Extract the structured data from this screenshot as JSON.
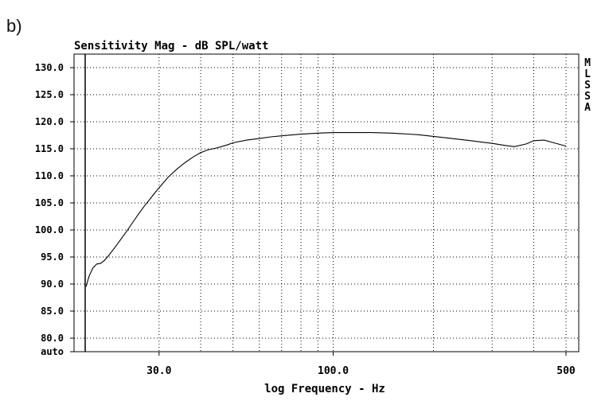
{
  "panel_label": "b)",
  "chart_data": {
    "type": "line",
    "title": "Sensitivity Mag - dB SPL/watt",
    "xlabel": "log Frequency - Hz",
    "ylabel": "",
    "x_scale": "log",
    "xlim": [
      18,
      500
    ],
    "ylim": [
      77.5,
      132.5
    ],
    "grid": true,
    "y_ticks": [
      {
        "value": 130,
        "label": "130.0"
      },
      {
        "value": 125,
        "label": "125.0"
      },
      {
        "value": 120,
        "label": "120.0"
      },
      {
        "value": 115,
        "label": "115.0"
      },
      {
        "value": 110,
        "label": "110.0"
      },
      {
        "value": 105,
        "label": "105.0"
      },
      {
        "value": 100,
        "label": "100.0"
      },
      {
        "value": 95,
        "label": "95.0"
      },
      {
        "value": 90,
        "label": "90.0"
      },
      {
        "value": 85,
        "label": "85.0"
      },
      {
        "value": 80,
        "label": "80.0"
      },
      {
        "value": 77.5,
        "label": "auto"
      }
    ],
    "x_ticks": [
      {
        "value": 30,
        "label": "30.0"
      },
      {
        "value": 100,
        "label": "100.0"
      },
      {
        "value": 500,
        "label": "500"
      }
    ],
    "x_grid": [
      30,
      40,
      50,
      60,
      70,
      80,
      90,
      100,
      200,
      300,
      400,
      500
    ],
    "side_label": [
      "M",
      "L",
      "S",
      "S",
      "A"
    ],
    "series": [
      {
        "x": [
          18.1,
          18.5,
          19,
          19.5,
          20,
          20.5,
          21,
          22,
          23,
          24,
          25,
          26,
          27,
          28,
          29,
          30,
          32,
          34,
          36,
          38,
          40,
          42,
          45,
          48,
          50,
          55,
          60,
          65,
          70,
          80,
          90,
          100,
          110,
          120,
          130,
          150,
          180,
          200,
          250,
          300,
          330,
          350,
          380,
          400,
          430,
          460,
          500
        ],
        "y": [
          89.5,
          91.5,
          93.0,
          93.7,
          93.8,
          94.3,
          95.0,
          96.6,
          98.2,
          99.8,
          101.4,
          102.9,
          104.3,
          105.5,
          106.7,
          107.8,
          109.8,
          111.3,
          112.5,
          113.5,
          114.3,
          114.8,
          115.2,
          115.7,
          116.1,
          116.6,
          116.9,
          117.2,
          117.4,
          117.7,
          117.9,
          118.0,
          118.0,
          118.0,
          118.0,
          117.9,
          117.6,
          117.3,
          116.6,
          116.0,
          115.6,
          115.4,
          115.9,
          116.5,
          116.6,
          116.1,
          115.5
        ]
      }
    ]
  }
}
